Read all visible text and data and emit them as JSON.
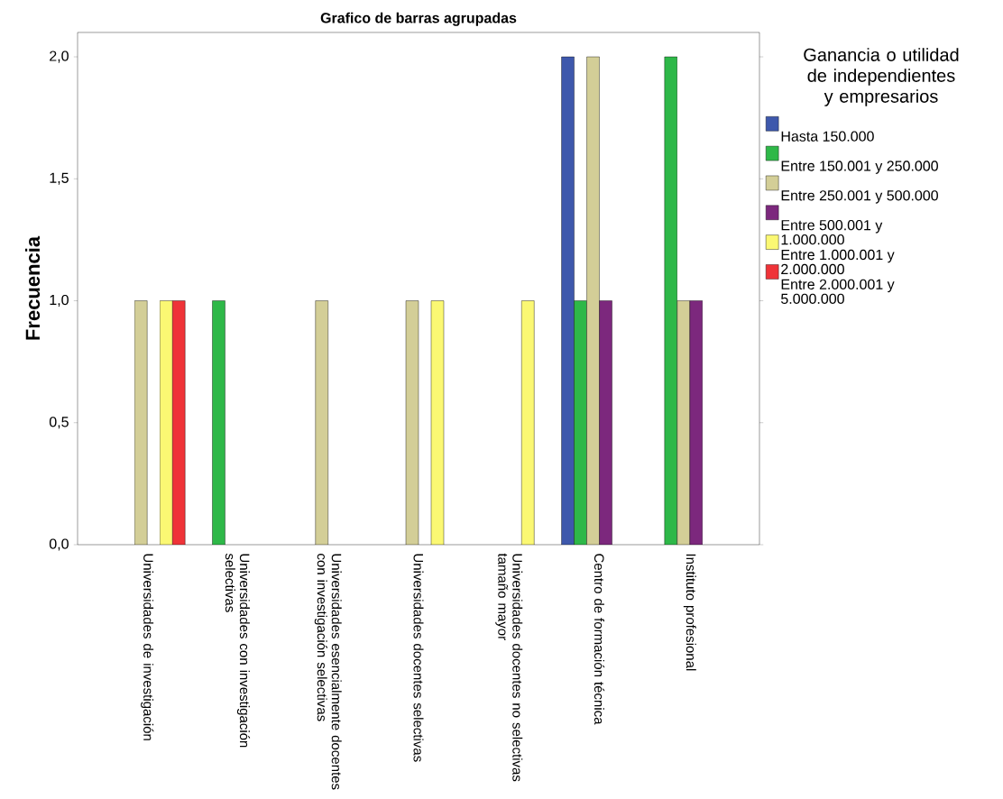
{
  "chart_data": {
    "type": "bar",
    "title": "Grafico de barras agrupadas",
    "ylabel": "Frecuencia",
    "legend_title": "Ganancia o utilidad de independientes y empresarios",
    "legend": "right",
    "categories": [
      "Universidades de investigación",
      "Universidades con investigación selectivas",
      "Universidades esencialmente docentes con investigación selectivas",
      "Universidades docentes selectivas",
      "Universidades docentes no selectivas tamaño mayor",
      "Centro de formación técnica",
      "Instituto profesional"
    ],
    "ylim": [
      0,
      2.1
    ],
    "yticks": [
      {
        "value": 0,
        "label": "0,0"
      },
      {
        "value": 0.5,
        "label": "0,5"
      },
      {
        "value": 1,
        "label": "1,0"
      },
      {
        "value": 1.5,
        "label": "1,5"
      },
      {
        "value": 2,
        "label": "2,0"
      }
    ],
    "series": [
      {
        "name": "Hasta 150.000",
        "color": "#3e58ac",
        "values": [
          null,
          null,
          null,
          null,
          null,
          2,
          null
        ]
      },
      {
        "name": "Entre 150.001 y 250.000",
        "color": "#2eb848",
        "values": [
          null,
          1,
          null,
          null,
          null,
          1,
          2
        ]
      },
      {
        "name": "Entre 250.001 y 500.000",
        "color": "#d3ce97",
        "values": [
          1,
          null,
          1,
          1,
          null,
          2,
          1
        ]
      },
      {
        "name": "Entre 500.001 y 1.000.000",
        "color": "#7c287d",
        "values": [
          null,
          null,
          null,
          null,
          null,
          1,
          1
        ]
      },
      {
        "name": "Entre 1.000.001 y 2.000.000",
        "color": "#fbf873",
        "values": [
          1,
          null,
          null,
          1,
          1,
          null,
          null
        ]
      },
      {
        "name": "Entre 2.000.001 y 5.000.000",
        "color": "#ef3338",
        "values": [
          1,
          null,
          null,
          null,
          null,
          null,
          null
        ]
      }
    ]
  }
}
